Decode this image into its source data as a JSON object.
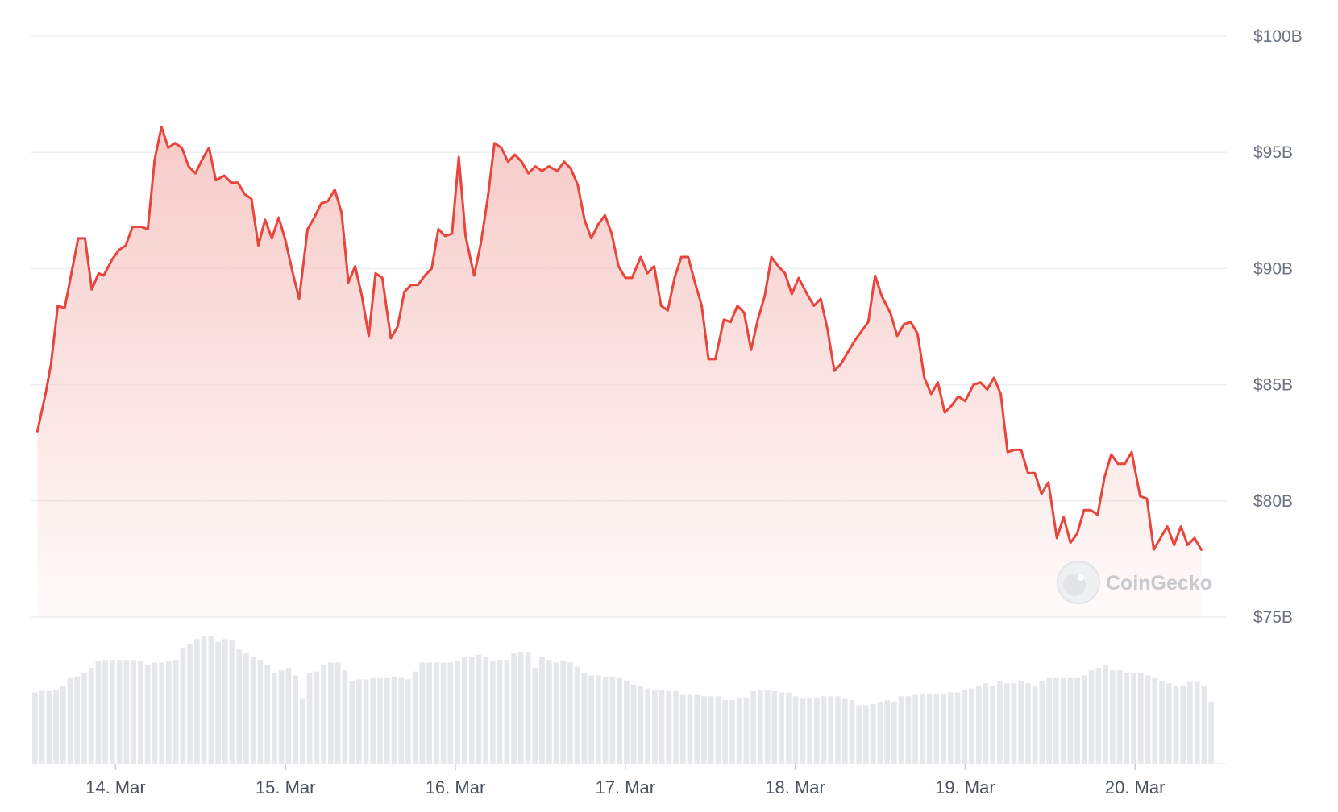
{
  "chart_data": {
    "type": "area",
    "watermark": "CoinGecko",
    "colors": {
      "line": "#e8453c",
      "fill": "#f6c8c5",
      "grid": "#eceef1",
      "volume": "#e5e7ea"
    },
    "y_ticks": [
      "$100B",
      "$95B",
      "$90B",
      "$85B",
      "$80B",
      "$75B"
    ],
    "ylim": [
      75,
      100
    ],
    "x_ticks": [
      "14. Mar",
      "15. Mar",
      "16. Mar",
      "17. Mar",
      "18. Mar",
      "19. Mar",
      "20. Mar"
    ],
    "xlim": [
      13.5,
      20.54
    ],
    "series": [
      {
        "values": [
          [
            13.54,
            83.0
          ],
          [
            13.59,
            84.7
          ],
          [
            13.62,
            85.9
          ],
          [
            13.66,
            88.4
          ],
          [
            13.7,
            88.3
          ],
          [
            13.74,
            89.8
          ],
          [
            13.78,
            91.3
          ],
          [
            13.82,
            91.3
          ],
          [
            13.86,
            89.1
          ],
          [
            13.9,
            89.8
          ],
          [
            13.93,
            89.7
          ],
          [
            13.98,
            90.4
          ],
          [
            14.02,
            90.8
          ],
          [
            14.06,
            91.0
          ],
          [
            14.1,
            91.8
          ],
          [
            14.15,
            91.8
          ],
          [
            14.19,
            91.7
          ],
          [
            14.23,
            94.7
          ],
          [
            14.27,
            96.1
          ],
          [
            14.31,
            95.2
          ],
          [
            14.35,
            95.4
          ],
          [
            14.39,
            95.2
          ],
          [
            14.43,
            94.4
          ],
          [
            14.47,
            94.1
          ],
          [
            14.51,
            94.7
          ],
          [
            14.55,
            95.2
          ],
          [
            14.59,
            93.8
          ],
          [
            14.64,
            94.0
          ],
          [
            14.68,
            93.7
          ],
          [
            14.72,
            93.7
          ],
          [
            14.76,
            93.2
          ],
          [
            14.8,
            93.0
          ],
          [
            14.84,
            91.0
          ],
          [
            14.88,
            92.1
          ],
          [
            14.92,
            91.3
          ],
          [
            14.96,
            92.2
          ],
          [
            15.0,
            91.2
          ],
          [
            15.04,
            89.9
          ],
          [
            15.08,
            88.7
          ],
          [
            15.13,
            91.7
          ],
          [
            15.17,
            92.2
          ],
          [
            15.21,
            92.8
          ],
          [
            15.25,
            92.9
          ],
          [
            15.29,
            93.4
          ],
          [
            15.33,
            92.4
          ],
          [
            15.37,
            89.4
          ],
          [
            15.41,
            90.1
          ],
          [
            15.45,
            88.8
          ],
          [
            15.49,
            87.1
          ],
          [
            15.53,
            89.8
          ],
          [
            15.57,
            89.6
          ],
          [
            15.62,
            87.0
          ],
          [
            15.66,
            87.5
          ],
          [
            15.7,
            89.0
          ],
          [
            15.74,
            89.3
          ],
          [
            15.78,
            89.3
          ],
          [
            15.82,
            89.7
          ],
          [
            15.86,
            90.0
          ],
          [
            15.9,
            91.7
          ],
          [
            15.94,
            91.4
          ],
          [
            15.98,
            91.5
          ],
          [
            16.02,
            94.8
          ],
          [
            16.06,
            91.4
          ],
          [
            16.11,
            89.7
          ],
          [
            16.15,
            91.1
          ],
          [
            16.19,
            93.0
          ],
          [
            16.23,
            95.4
          ],
          [
            16.27,
            95.2
          ],
          [
            16.31,
            94.6
          ],
          [
            16.35,
            94.9
          ],
          [
            16.39,
            94.6
          ],
          [
            16.43,
            94.1
          ],
          [
            16.47,
            94.4
          ],
          [
            16.51,
            94.2
          ],
          [
            16.55,
            94.4
          ],
          [
            16.6,
            94.2
          ],
          [
            16.64,
            94.6
          ],
          [
            16.68,
            94.3
          ],
          [
            16.72,
            93.6
          ],
          [
            16.76,
            92.1
          ],
          [
            16.8,
            91.3
          ],
          [
            16.84,
            91.9
          ],
          [
            16.88,
            92.3
          ],
          [
            16.92,
            91.5
          ],
          [
            16.96,
            90.1
          ],
          [
            17.0,
            89.6
          ],
          [
            17.04,
            89.6
          ],
          [
            17.09,
            90.5
          ],
          [
            17.13,
            89.8
          ],
          [
            17.17,
            90.1
          ],
          [
            17.21,
            88.4
          ],
          [
            17.25,
            88.2
          ],
          [
            17.29,
            89.6
          ],
          [
            17.33,
            90.5
          ],
          [
            17.37,
            90.5
          ],
          [
            17.41,
            89.4
          ],
          [
            17.45,
            88.4
          ],
          [
            17.49,
            86.1
          ],
          [
            17.53,
            86.1
          ],
          [
            17.58,
            87.8
          ],
          [
            17.62,
            87.7
          ],
          [
            17.66,
            88.4
          ],
          [
            17.7,
            88.1
          ],
          [
            17.74,
            86.5
          ],
          [
            17.78,
            87.8
          ],
          [
            17.82,
            88.8
          ],
          [
            17.86,
            90.5
          ],
          [
            17.9,
            90.1
          ],
          [
            17.94,
            89.8
          ],
          [
            17.98,
            88.9
          ],
          [
            18.02,
            89.6
          ],
          [
            18.07,
            88.9
          ],
          [
            18.11,
            88.4
          ],
          [
            18.15,
            88.7
          ],
          [
            18.19,
            87.4
          ],
          [
            18.23,
            85.6
          ],
          [
            18.27,
            85.9
          ],
          [
            18.31,
            86.4
          ],
          [
            18.35,
            86.9
          ],
          [
            18.39,
            87.3
          ],
          [
            18.43,
            87.7
          ],
          [
            18.47,
            89.7
          ],
          [
            18.51,
            88.8
          ],
          [
            18.56,
            88.1
          ],
          [
            18.6,
            87.1
          ],
          [
            18.64,
            87.6
          ],
          [
            18.68,
            87.7
          ],
          [
            18.72,
            87.2
          ],
          [
            18.76,
            85.3
          ],
          [
            18.8,
            84.6
          ],
          [
            18.84,
            85.1
          ],
          [
            18.88,
            83.8
          ],
          [
            18.92,
            84.1
          ],
          [
            18.96,
            84.5
          ],
          [
            19.0,
            84.3
          ],
          [
            19.05,
            85.0
          ],
          [
            19.09,
            85.1
          ],
          [
            19.13,
            84.8
          ],
          [
            19.17,
            85.3
          ],
          [
            19.21,
            84.6
          ],
          [
            19.25,
            82.1
          ],
          [
            19.29,
            82.2
          ],
          [
            19.33,
            82.2
          ],
          [
            19.37,
            81.2
          ],
          [
            19.41,
            81.2
          ],
          [
            19.45,
            80.3
          ],
          [
            19.49,
            80.8
          ],
          [
            19.54,
            78.4
          ],
          [
            19.58,
            79.3
          ],
          [
            19.62,
            78.2
          ],
          [
            19.66,
            78.6
          ],
          [
            19.7,
            79.6
          ],
          [
            19.74,
            79.6
          ],
          [
            19.78,
            79.4
          ],
          [
            19.82,
            81.0
          ],
          [
            19.86,
            82.0
          ],
          [
            19.9,
            81.6
          ],
          [
            19.94,
            81.6
          ],
          [
            19.98,
            82.1
          ],
          [
            20.03,
            80.2
          ],
          [
            20.07,
            80.1
          ],
          [
            20.11,
            77.9
          ],
          [
            20.15,
            78.4
          ],
          [
            20.19,
            78.9
          ],
          [
            20.23,
            78.1
          ],
          [
            20.27,
            78.9
          ],
          [
            20.31,
            78.1
          ],
          [
            20.35,
            78.4
          ],
          [
            20.39,
            77.9
          ]
        ]
      }
    ],
    "volume": [
      0.55,
      0.56,
      0.56,
      0.57,
      0.6,
      0.66,
      0.67,
      0.7,
      0.74,
      0.79,
      0.8,
      0.8,
      0.8,
      0.8,
      0.8,
      0.79,
      0.76,
      0.78,
      0.78,
      0.79,
      0.8,
      0.89,
      0.92,
      0.96,
      0.98,
      0.98,
      0.94,
      0.96,
      0.95,
      0.88,
      0.85,
      0.82,
      0.8,
      0.76,
      0.7,
      0.72,
      0.74,
      0.68,
      0.5,
      0.7,
      0.71,
      0.76,
      0.78,
      0.78,
      0.72,
      0.64,
      0.65,
      0.65,
      0.66,
      0.66,
      0.66,
      0.67,
      0.66,
      0.65,
      0.71,
      0.78,
      0.78,
      0.78,
      0.78,
      0.78,
      0.79,
      0.82,
      0.82,
      0.84,
      0.82,
      0.79,
      0.8,
      0.8,
      0.85,
      0.86,
      0.86,
      0.74,
      0.82,
      0.8,
      0.78,
      0.79,
      0.78,
      0.75,
      0.7,
      0.68,
      0.68,
      0.67,
      0.67,
      0.66,
      0.64,
      0.61,
      0.6,
      0.58,
      0.57,
      0.57,
      0.56,
      0.56,
      0.53,
      0.53,
      0.53,
      0.52,
      0.52,
      0.52,
      0.49,
      0.49,
      0.51,
      0.51,
      0.56,
      0.57,
      0.57,
      0.56,
      0.55,
      0.55,
      0.52,
      0.5,
      0.51,
      0.51,
      0.52,
      0.52,
      0.52,
      0.5,
      0.49,
      0.45,
      0.45,
      0.46,
      0.47,
      0.49,
      0.48,
      0.52,
      0.52,
      0.53,
      0.54,
      0.54,
      0.54,
      0.54,
      0.55,
      0.55,
      0.57,
      0.58,
      0.6,
      0.62,
      0.6,
      0.64,
      0.62,
      0.62,
      0.64,
      0.62,
      0.6,
      0.64,
      0.66,
      0.66,
      0.66,
      0.66,
      0.66,
      0.68,
      0.72,
      0.74,
      0.76,
      0.72,
      0.72,
      0.7,
      0.7,
      0.7,
      0.68,
      0.66,
      0.64,
      0.62,
      0.6,
      0.6,
      0.63,
      0.63,
      0.6,
      0.48
    ]
  }
}
